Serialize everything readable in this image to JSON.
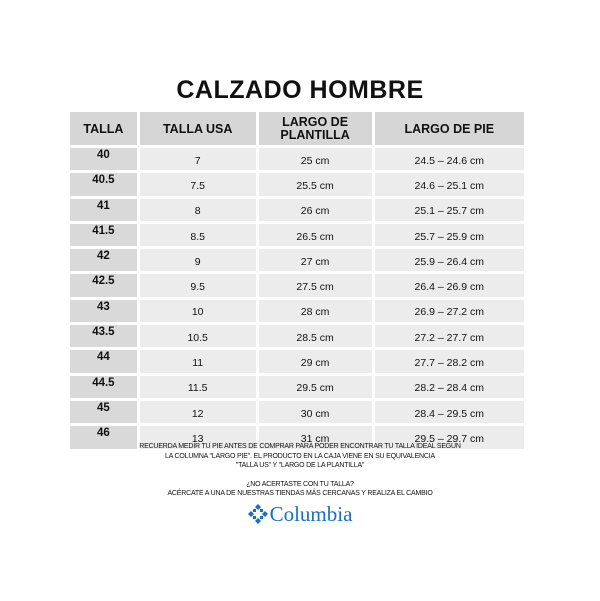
{
  "title": "CALZADO HOMBRE",
  "table": {
    "headers": [
      "TALLA",
      "TALLA USA",
      "LARGO DE PLANTILLA",
      "LARGO DE PIE"
    ],
    "rows": [
      [
        "40",
        "7",
        "25 cm",
        "24.5 – 24.6 cm"
      ],
      [
        "40.5",
        "7.5",
        "25.5 cm",
        "24.6 – 25.1 cm"
      ],
      [
        "41",
        "8",
        "26 cm",
        "25.1 – 25.7 cm"
      ],
      [
        "41.5",
        "8.5",
        "26.5 cm",
        "25.7 – 25.9 cm"
      ],
      [
        "42",
        "9",
        "27 cm",
        "25.9 – 26.4 cm"
      ],
      [
        "42.5",
        "9.5",
        "27.5 cm",
        "26.4 – 26.9 cm"
      ],
      [
        "43",
        "10",
        "28 cm",
        "26.9 – 27.2 cm"
      ],
      [
        "43.5",
        "10.5",
        "28.5 cm",
        "27.2 – 27.7 cm"
      ],
      [
        "44",
        "11",
        "29 cm",
        "27.7 – 28.2 cm"
      ],
      [
        "44.5",
        "11.5",
        "29.5 cm",
        "28.2 – 28.4 cm"
      ],
      [
        "45",
        "12",
        "30 cm",
        "28.4 – 29.5 cm"
      ],
      [
        "46",
        "13",
        "31 cm",
        "29.5 – 29.7 cm"
      ]
    ]
  },
  "note": {
    "lines": [
      "RECUERDA MEDIR TU PIE ANTES DE COMPRAR PARA PODER ENCONTRAR TU TALLA IDEAL SEGÚN",
      "LA COLUMNA \"LARGO PIE\". EL PRODUCTO EN LA CAJA VIENE EN SU EQUIVALENCIA",
      "\"TALLA US\" Y \"LARGO DE LA PLANTILLA\""
    ],
    "question": "¿NO ACERTASTE CON TU TALLA?",
    "action": "ACÉRCATE A UNA DE NUESTRAS TIENDAS MÁS CERCANAS Y REALIZA EL CAMBIO"
  },
  "logo": {
    "text": "Columbia",
    "color": "#1a6fc1",
    "icon": "columbia-diamond-icon"
  }
}
